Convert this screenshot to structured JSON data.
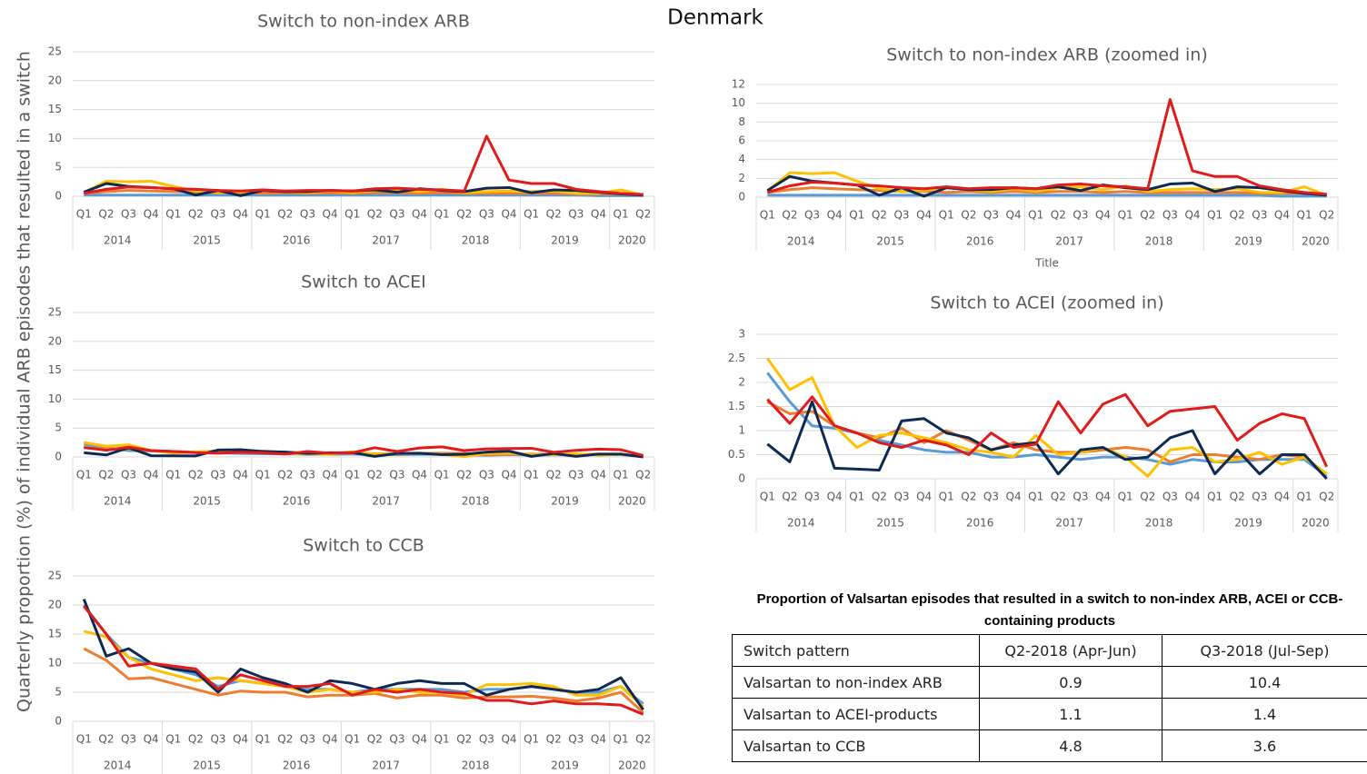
{
  "title": "Denmark",
  "y_axis_label": "Quarterly proportion (%) of individual ARB episodes that resulted in a switch",
  "chart_data": [
    {
      "type": "line",
      "title": "Switch to non-index ARB",
      "categories": [
        "Q1",
        "Q2",
        "Q3",
        "Q4",
        "Q1",
        "Q2",
        "Q3",
        "Q4",
        "Q1",
        "Q2",
        "Q3",
        "Q4",
        "Q1",
        "Q2",
        "Q3",
        "Q4",
        "Q1",
        "Q2",
        "Q3",
        "Q4",
        "Q1",
        "Q2",
        "Q3",
        "Q4",
        "Q1",
        "Q2"
      ],
      "category_groups": [
        "2014",
        "2015",
        "2016",
        "2017",
        "2018",
        "2019",
        "2020"
      ],
      "ylim": [
        0,
        25
      ],
      "yticks": [
        0,
        5,
        10,
        15,
        20,
        25
      ],
      "grid": true,
      "series": [
        {
          "color": "#5b9bd5",
          "values": [
            0.2,
            0.2,
            0.2,
            0.2,
            0.2,
            0.2,
            0.2,
            0.2,
            0.2,
            0.2,
            0.2,
            0.2,
            0.2,
            0.2,
            0.2,
            0.2,
            0.2,
            0.2,
            0.2,
            0.2,
            0.2,
            0.2,
            0.2,
            0.1,
            0.1,
            0.1
          ]
        },
        {
          "color": "#ed7d31",
          "values": [
            0.5,
            0.8,
            1.0,
            0.9,
            0.8,
            0.7,
            0.6,
            0.6,
            0.5,
            0.6,
            0.5,
            0.6,
            0.5,
            0.6,
            0.6,
            0.5,
            0.6,
            0.5,
            0.5,
            0.5,
            0.5,
            0.5,
            0.4,
            0.4,
            0.4,
            0.3
          ]
        },
        {
          "color": "#ffc000",
          "values": [
            0.6,
            2.6,
            2.5,
            2.6,
            1.7,
            0.9,
            0.6,
            0.7,
            1.1,
            0.8,
            0.6,
            0.9,
            0.6,
            1.0,
            1.1,
            0.8,
            1.2,
            0.6,
            0.8,
            0.9,
            0.8,
            0.9,
            0.5,
            0.5,
            1.1,
            0.2
          ]
        },
        {
          "color": "#0f2a52",
          "values": [
            0.7,
            2.2,
            1.7,
            1.5,
            1.3,
            0.2,
            1.0,
            0.1,
            1.0,
            0.8,
            0.8,
            1.0,
            0.9,
            1.1,
            0.7,
            1.3,
            1.0,
            0.8,
            1.4,
            1.5,
            0.6,
            1.1,
            1.0,
            0.7,
            0.4,
            0.2
          ]
        },
        {
          "color": "#e01b1b",
          "values": [
            0.5,
            1.2,
            1.6,
            1.5,
            1.3,
            1.2,
            1.0,
            0.9,
            1.1,
            0.9,
            1.0,
            1.0,
            0.9,
            1.3,
            1.4,
            1.2,
            1.1,
            0.9,
            10.4,
            2.8,
            2.2,
            2.2,
            1.2,
            0.8,
            0.5,
            0.3
          ]
        }
      ]
    },
    {
      "type": "line",
      "title": "Switch to ACEI",
      "categories": [
        "Q1",
        "Q2",
        "Q3",
        "Q4",
        "Q1",
        "Q2",
        "Q3",
        "Q4",
        "Q1",
        "Q2",
        "Q3",
        "Q4",
        "Q1",
        "Q2",
        "Q3",
        "Q4",
        "Q1",
        "Q2",
        "Q3",
        "Q4",
        "Q1",
        "Q2",
        "Q3",
        "Q4",
        "Q1",
        "Q2"
      ],
      "category_groups": [
        "2014",
        "2015",
        "2016",
        "2017",
        "2018",
        "2019",
        "2020"
      ],
      "ylim": [
        0,
        25
      ],
      "yticks": [
        0,
        5,
        10,
        15,
        20,
        25
      ],
      "grid": true,
      "series": [
        {
          "color": "#5b9bd5",
          "values": [
            2.2,
            1.6,
            1.1,
            1.05,
            0.95,
            0.8,
            0.7,
            0.6,
            0.55,
            0.55,
            0.45,
            0.45,
            0.5,
            0.45,
            0.4,
            0.45,
            0.45,
            0.4,
            0.3,
            0.4,
            0.35,
            0.35,
            0.4,
            0.4,
            0.4,
            0.05
          ]
        },
        {
          "color": "#ed7d31",
          "values": [
            1.6,
            1.35,
            1.4,
            1.1,
            0.95,
            0.85,
            1.05,
            0.75,
            1.0,
            0.8,
            0.6,
            0.75,
            0.6,
            0.55,
            0.55,
            0.6,
            0.65,
            0.6,
            0.35,
            0.5,
            0.5,
            0.45,
            0.4,
            0.5,
            0.45,
            0.1
          ]
        },
        {
          "color": "#ffc000",
          "values": [
            2.5,
            1.85,
            2.1,
            1.1,
            0.65,
            0.9,
            0.95,
            0.85,
            0.75,
            0.6,
            0.55,
            0.45,
            0.9,
            0.5,
            0.55,
            0.65,
            0.45,
            0.05,
            0.6,
            0.65,
            0.35,
            0.4,
            0.55,
            0.3,
            0.45,
            0.1
          ]
        },
        {
          "color": "#0f2a52",
          "values": [
            0.72,
            0.35,
            1.6,
            0.22,
            0.2,
            0.18,
            1.2,
            1.25,
            0.95,
            0.85,
            0.6,
            0.7,
            0.75,
            0.1,
            0.6,
            0.65,
            0.4,
            0.45,
            0.85,
            1.0,
            0.1,
            0.6,
            0.1,
            0.5,
            0.5,
            0.0
          ]
        },
        {
          "color": "#e01b1b",
          "values": [
            1.65,
            1.15,
            1.7,
            1.1,
            0.95,
            0.75,
            0.65,
            0.8,
            0.7,
            0.5,
            0.95,
            0.65,
            0.72,
            1.6,
            0.95,
            1.55,
            1.75,
            1.1,
            1.4,
            1.45,
            1.5,
            0.8,
            1.15,
            1.35,
            1.25,
            0.25
          ]
        }
      ]
    },
    {
      "type": "line",
      "title": "Switch to CCB",
      "categories": [
        "Q1",
        "Q2",
        "Q3",
        "Q4",
        "Q1",
        "Q2",
        "Q3",
        "Q4",
        "Q1",
        "Q2",
        "Q3",
        "Q4",
        "Q1",
        "Q2",
        "Q3",
        "Q4",
        "Q1",
        "Q2",
        "Q3",
        "Q4",
        "Q1",
        "Q2",
        "Q3",
        "Q4",
        "Q1",
        "Q2"
      ],
      "category_groups": [
        "2014",
        "2015",
        "2016",
        "2017",
        "2018",
        "2019",
        "2020"
      ],
      "ylim": [
        0,
        25
      ],
      "yticks": [
        0,
        5,
        10,
        15,
        20,
        25
      ],
      "grid": true,
      "series": [
        {
          "color": "#5b9bd5",
          "values": [
            20,
            15,
            11,
            10,
            9,
            8,
            6,
            7,
            6.5,
            6,
            5.5,
            5.5,
            5,
            5.5,
            5.5,
            5.5,
            5.5,
            5,
            5.5,
            5.5,
            6,
            5.5,
            5,
            5,
            6,
            3
          ]
        },
        {
          "color": "#ed7d31",
          "values": [
            12.5,
            10.5,
            7.3,
            7.5,
            6.5,
            5.5,
            4.5,
            5.2,
            5,
            5,
            4.2,
            4.5,
            4.5,
            4.8,
            4,
            4.5,
            4.5,
            4,
            4.2,
            4.2,
            4.3,
            4,
            3.5,
            4,
            5,
            1.5
          ]
        },
        {
          "color": "#ffc000",
          "values": [
            15.5,
            14.5,
            11,
            9,
            8,
            7,
            7.5,
            7,
            6.5,
            6,
            5,
            5.5,
            5,
            5,
            5.5,
            5,
            5,
            4.5,
            6.3,
            6.3,
            6.5,
            6,
            4.5,
            4.5,
            6,
            2.5
          ]
        },
        {
          "color": "#0f2a52",
          "values": [
            21,
            11.2,
            12.5,
            10,
            9,
            8.5,
            5,
            9,
            7.5,
            6.5,
            5,
            7,
            6.5,
            5.5,
            6.5,
            7,
            6.5,
            6.5,
            4.5,
            5.5,
            6,
            5.5,
            5,
            5.5,
            7.5,
            2
          ]
        },
        {
          "color": "#e01b1b",
          "values": [
            19.8,
            15,
            9.5,
            10,
            9.5,
            9,
            5.5,
            8,
            7,
            6,
            6,
            6.5,
            4.5,
            5.5,
            5,
            5.5,
            5,
            4.8,
            3.6,
            3.6,
            3,
            3.5,
            3,
            3,
            2.8,
            1.2
          ]
        }
      ]
    },
    {
      "type": "line",
      "title": "Switch to non-index ARB (zoomed in)",
      "x_label": "Title",
      "categories": [
        "Q1",
        "Q2",
        "Q3",
        "Q4",
        "Q1",
        "Q2",
        "Q3",
        "Q4",
        "Q1",
        "Q2",
        "Q3",
        "Q4",
        "Q1",
        "Q2",
        "Q3",
        "Q4",
        "Q1",
        "Q2",
        "Q3",
        "Q4",
        "Q1",
        "Q2",
        "Q3",
        "Q4",
        "Q1",
        "Q2"
      ],
      "category_groups": [
        "2014",
        "2015",
        "2016",
        "2017",
        "2018",
        "2019",
        "2020"
      ],
      "ylim": [
        0,
        12
      ],
      "yticks": [
        0,
        2,
        4,
        6,
        8,
        10,
        12
      ],
      "grid": true,
      "series": [
        {
          "color": "#5b9bd5",
          "values": [
            0.2,
            0.2,
            0.2,
            0.2,
            0.2,
            0.2,
            0.2,
            0.2,
            0.2,
            0.2,
            0.2,
            0.2,
            0.2,
            0.2,
            0.2,
            0.2,
            0.2,
            0.2,
            0.2,
            0.2,
            0.2,
            0.2,
            0.2,
            0.1,
            0.1,
            0.1
          ]
        },
        {
          "color": "#ed7d31",
          "values": [
            0.5,
            0.8,
            1.0,
            0.9,
            0.8,
            0.7,
            0.6,
            0.6,
            0.5,
            0.6,
            0.5,
            0.6,
            0.5,
            0.6,
            0.6,
            0.5,
            0.6,
            0.5,
            0.5,
            0.5,
            0.5,
            0.5,
            0.4,
            0.4,
            0.4,
            0.3
          ]
        },
        {
          "color": "#ffc000",
          "values": [
            0.6,
            2.6,
            2.5,
            2.6,
            1.7,
            0.9,
            0.6,
            0.7,
            1.1,
            0.8,
            0.6,
            0.9,
            0.6,
            1.0,
            1.1,
            0.8,
            1.2,
            0.6,
            0.8,
            0.9,
            0.8,
            0.9,
            0.5,
            0.5,
            1.1,
            0.2
          ]
        },
        {
          "color": "#0f2a52",
          "values": [
            0.7,
            2.2,
            1.7,
            1.5,
            1.3,
            0.2,
            1.0,
            0.1,
            1.0,
            0.8,
            0.8,
            1.0,
            0.9,
            1.1,
            0.7,
            1.3,
            1.0,
            0.8,
            1.4,
            1.5,
            0.6,
            1.1,
            1.0,
            0.7,
            0.4,
            0.2
          ]
        },
        {
          "color": "#e01b1b",
          "values": [
            0.5,
            1.2,
            1.6,
            1.5,
            1.3,
            1.2,
            1.0,
            0.9,
            1.1,
            0.9,
            1.0,
            1.0,
            0.9,
            1.3,
            1.4,
            1.2,
            1.1,
            0.9,
            10.4,
            2.8,
            2.2,
            2.2,
            1.2,
            0.8,
            0.5,
            0.3
          ]
        }
      ]
    },
    {
      "type": "line",
      "title": "Switch to ACEI (zoomed in)",
      "categories": [
        "Q1",
        "Q2",
        "Q3",
        "Q4",
        "Q1",
        "Q2",
        "Q3",
        "Q4",
        "Q1",
        "Q2",
        "Q3",
        "Q4",
        "Q1",
        "Q2",
        "Q3",
        "Q4",
        "Q1",
        "Q2",
        "Q3",
        "Q4",
        "Q1",
        "Q2",
        "Q3",
        "Q4",
        "Q1",
        "Q2"
      ],
      "category_groups": [
        "2014",
        "2015",
        "2016",
        "2017",
        "2018",
        "2019",
        "2020"
      ],
      "ylim": [
        0,
        3
      ],
      "yticks": [
        0,
        0.5,
        1,
        1.5,
        2,
        2.5,
        3
      ],
      "grid": true,
      "series": [
        {
          "color": "#5b9bd5",
          "values": [
            2.2,
            1.6,
            1.1,
            1.05,
            0.95,
            0.8,
            0.7,
            0.6,
            0.55,
            0.55,
            0.45,
            0.45,
            0.5,
            0.45,
            0.4,
            0.45,
            0.45,
            0.4,
            0.3,
            0.4,
            0.35,
            0.35,
            0.4,
            0.4,
            0.4,
            0.05
          ]
        },
        {
          "color": "#ed7d31",
          "values": [
            1.6,
            1.35,
            1.4,
            1.1,
            0.95,
            0.85,
            1.05,
            0.75,
            1.0,
            0.8,
            0.6,
            0.75,
            0.6,
            0.55,
            0.55,
            0.6,
            0.65,
            0.6,
            0.35,
            0.5,
            0.5,
            0.45,
            0.4,
            0.5,
            0.45,
            0.1
          ]
        },
        {
          "color": "#ffc000",
          "values": [
            2.5,
            1.85,
            2.1,
            1.1,
            0.65,
            0.9,
            0.95,
            0.85,
            0.75,
            0.6,
            0.55,
            0.45,
            0.9,
            0.5,
            0.55,
            0.65,
            0.45,
            0.05,
            0.6,
            0.65,
            0.35,
            0.4,
            0.55,
            0.3,
            0.45,
            0.1
          ]
        },
        {
          "color": "#0f2a52",
          "values": [
            0.72,
            0.35,
            1.6,
            0.22,
            0.2,
            0.18,
            1.2,
            1.25,
            0.95,
            0.85,
            0.6,
            0.7,
            0.75,
            0.1,
            0.6,
            0.65,
            0.4,
            0.45,
            0.85,
            1.0,
            0.1,
            0.6,
            0.1,
            0.5,
            0.5,
            0.0
          ]
        },
        {
          "color": "#e01b1b",
          "values": [
            1.65,
            1.15,
            1.7,
            1.1,
            0.95,
            0.75,
            0.65,
            0.8,
            0.7,
            0.5,
            0.95,
            0.65,
            0.72,
            1.6,
            0.95,
            1.55,
            1.75,
            1.1,
            1.4,
            1.45,
            1.5,
            0.8,
            1.15,
            1.35,
            1.25,
            0.25
          ]
        }
      ]
    }
  ],
  "table": {
    "title": "Proportion of Valsartan episodes that resulted in a switch to non-index ARB, ACEI or CCB-containing products",
    "header": [
      "Switch pattern",
      "Q2-2018 (Apr-Jun)",
      "Q3-2018 (Jul-Sep)"
    ],
    "rows": [
      [
        "Valsartan to non-index ARB",
        "0.9",
        "10.4"
      ],
      [
        "Valsartan to ACEI-products",
        "1.1",
        "1.4"
      ],
      [
        "Valsartan to CCB",
        "4.8",
        "3.6"
      ]
    ]
  }
}
